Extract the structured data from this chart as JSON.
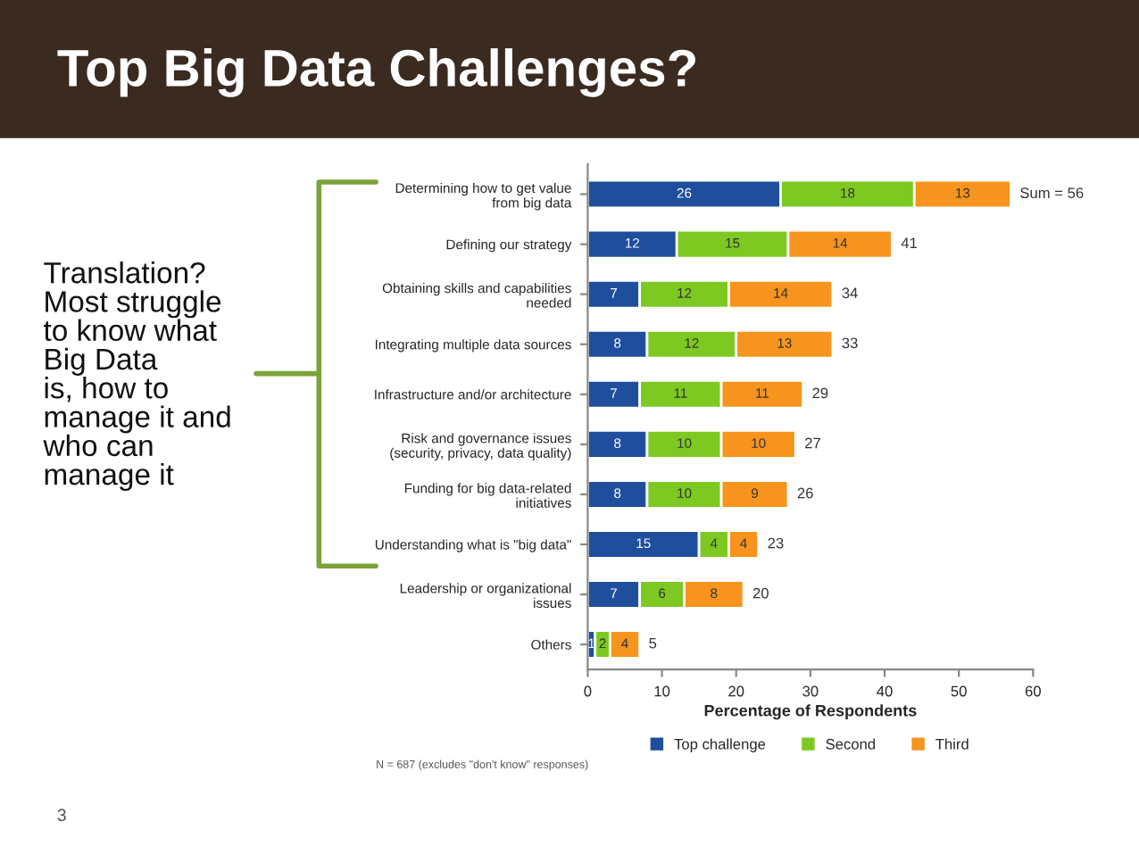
{
  "chart_data": {
    "type": "bar",
    "orientation": "horizontal",
    "stacked": true,
    "title": "Top Big Data Challenges?",
    "categories": [
      "Determining how to get value\nfrom big data",
      "Defining our strategy",
      "Obtaining skills and capabilities\nneeded",
      "Integrating multiple data sources",
      "Infrastructure and/or architecture",
      "Risk and governance issues\n(security, privacy, data quality)",
      "Funding for big data-related\ninitiatives",
      "Understanding what is \"big data\"",
      "Leadership or organizational\nissues",
      "Others"
    ],
    "series": [
      {
        "name": "Top challenge",
        "color": "#1f4e9c",
        "values": [
          26,
          12,
          7,
          8,
          7,
          8,
          8,
          15,
          7,
          1
        ]
      },
      {
        "name": "Second",
        "color": "#7dc922",
        "values": [
          18,
          15,
          12,
          12,
          11,
          10,
          10,
          4,
          6,
          2
        ]
      },
      {
        "name": "Third",
        "color": "#f7941d",
        "values": [
          13,
          14,
          14,
          13,
          11,
          10,
          9,
          4,
          8,
          4
        ]
      }
    ],
    "totals": [
      "Sum = 56",
      "41",
      "34",
      "33",
      "29",
      "27",
      "26",
      "23",
      "20",
      "5"
    ],
    "data_labels": true,
    "xlabel": "Percentage of Respondents",
    "xlim": [
      0,
      60
    ],
    "xticks": [
      0,
      10,
      20,
      30,
      40,
      50,
      60
    ],
    "grid": false,
    "legend": "bottom",
    "annotations": [
      "Translation?\nMost struggle\nto know what\nBig Data\nis, how to\nmanage it and\nwho can\nmanage it",
      "N = 687 (excludes \"don't know\" responses)",
      "3"
    ]
  }
}
